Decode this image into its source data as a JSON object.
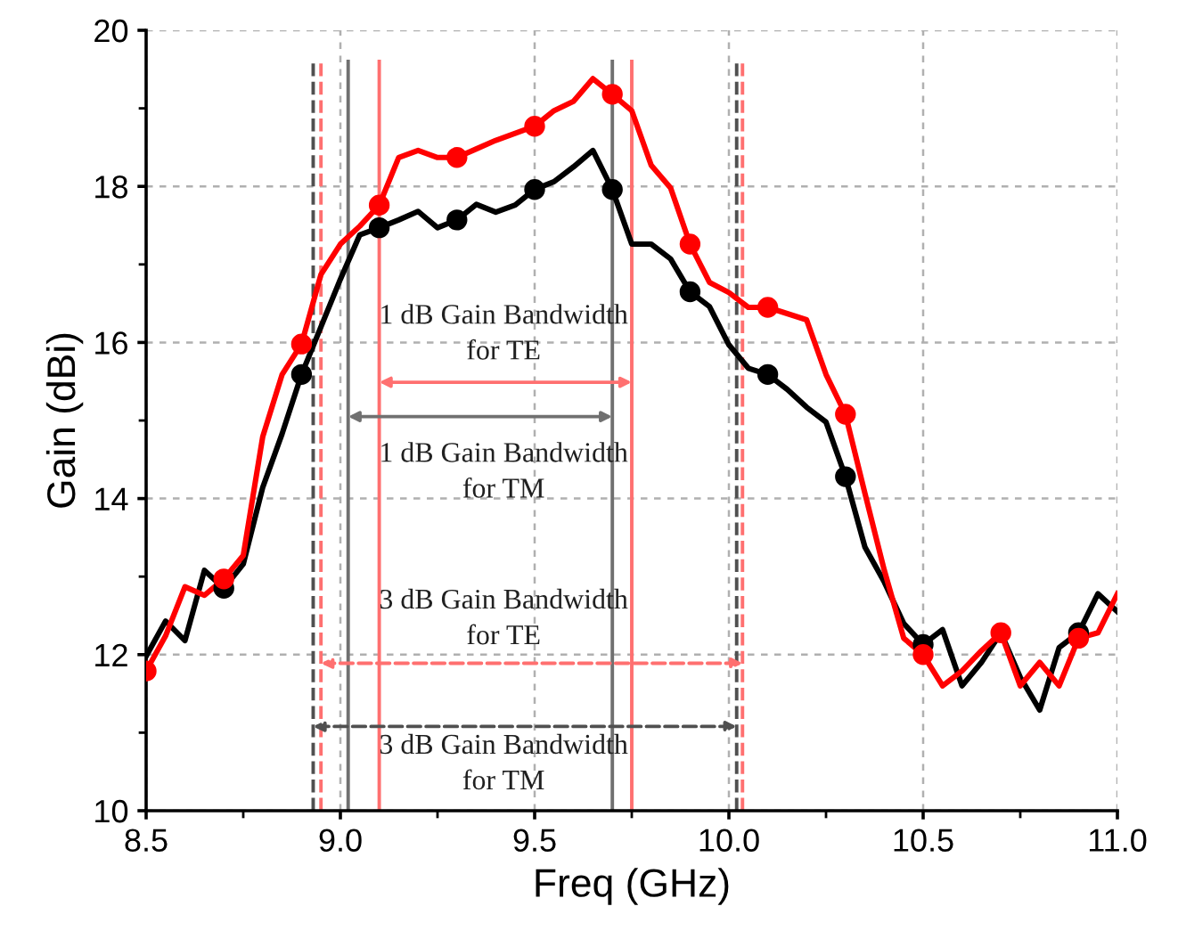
{
  "chart_data": {
    "type": "line",
    "xlabel": "Freq (GHz)",
    "ylabel": "Gain (dBi)",
    "xlim": [
      8.5,
      11.0
    ],
    "ylim": [
      10,
      20
    ],
    "xticks": [
      8.5,
      {
        "value": 9.0,
        "label": "9.0"
      },
      9.5,
      {
        "value": 10.0,
        "label": "10.0"
      },
      10.5,
      {
        "value": 11.0,
        "label": "11.0"
      }
    ],
    "yticks": [
      10,
      12,
      14,
      16,
      18,
      20
    ],
    "grid": true,
    "line_style": "solid",
    "x": [
      8.5,
      8.55,
      8.6,
      8.65,
      8.7,
      8.75,
      8.8,
      8.85,
      8.9,
      8.95,
      9.0,
      9.05,
      9.1,
      9.15,
      9.2,
      9.25,
      9.3,
      9.35,
      9.4,
      9.45,
      9.5,
      9.55,
      9.6,
      9.65,
      9.7,
      9.75,
      9.8,
      9.85,
      9.9,
      9.95,
      10.0,
      10.05,
      10.1,
      10.15,
      10.2,
      10.25,
      10.3,
      10.35,
      10.4,
      10.45,
      10.5,
      10.55,
      10.6,
      10.65,
      10.7,
      10.75,
      10.8,
      10.85,
      10.9,
      10.95,
      11.0
    ],
    "series": [
      {
        "color": "#000000",
        "values": [
          11.98,
          12.43,
          12.18,
          13.08,
          12.85,
          13.16,
          14.14,
          14.83,
          15.59,
          16.2,
          16.81,
          17.38,
          17.47,
          17.57,
          17.68,
          17.47,
          17.57,
          17.77,
          17.67,
          17.76,
          17.96,
          18.06,
          18.25,
          18.46,
          17.96,
          17.26,
          17.26,
          17.07,
          16.65,
          16.46,
          15.97,
          15.67,
          15.59,
          15.4,
          15.17,
          14.98,
          14.28,
          13.38,
          12.93,
          12.4,
          12.13,
          12.32,
          11.6,
          11.9,
          12.28,
          11.71,
          11.29,
          12.09,
          12.28,
          12.78,
          12.55
        ]
      },
      {
        "color": "#ff0000",
        "values": [
          11.79,
          12.24,
          12.87,
          12.76,
          12.97,
          13.27,
          14.79,
          15.59,
          15.98,
          16.87,
          17.26,
          17.49,
          17.76,
          18.37,
          18.46,
          18.37,
          18.37,
          18.48,
          18.59,
          18.68,
          18.77,
          18.97,
          19.09,
          19.38,
          19.18,
          18.97,
          18.27,
          17.98,
          17.26,
          16.77,
          16.64,
          16.45,
          16.45,
          16.37,
          16.29,
          15.59,
          15.08,
          14.07,
          13.08,
          12.21,
          12.0,
          11.6,
          11.79,
          12.05,
          12.28,
          11.6,
          11.9,
          11.6,
          12.21,
          12.28,
          12.78
        ]
      },
      {
        "type": "scatter",
        "marker": "circle",
        "color": "#000000",
        "x": [
          8.7,
          8.9,
          9.1,
          9.3,
          9.5,
          9.7,
          9.9,
          10.1,
          10.3,
          10.5,
          10.7,
          10.9
        ],
        "values": [
          12.85,
          15.59,
          17.47,
          17.57,
          17.96,
          17.96,
          16.65,
          15.59,
          14.28,
          12.13,
          null,
          12.28
        ]
      },
      {
        "type": "scatter",
        "marker": "circle",
        "color": "#ff0000",
        "x": [
          8.5,
          8.7,
          8.9,
          9.1,
          9.3,
          9.5,
          9.7,
          9.9,
          10.1,
          10.3,
          10.5,
          10.7,
          10.9
        ],
        "values": [
          11.79,
          12.97,
          15.98,
          17.76,
          18.37,
          18.77,
          19.18,
          17.26,
          16.45,
          15.08,
          12.0,
          12.28,
          12.21
        ]
      }
    ],
    "ref_lines": [
      {
        "axis": "x",
        "value": 9.1,
        "color": "#ff7070",
        "line_style": "solid"
      },
      {
        "axis": "x",
        "value": 9.75,
        "color": "#ff7070",
        "line_style": "solid"
      },
      {
        "axis": "x",
        "value": 9.02,
        "color": "#707070",
        "line_style": "solid"
      },
      {
        "axis": "x",
        "value": 9.7,
        "color": "#707070",
        "line_style": "solid"
      },
      {
        "axis": "x",
        "value": 8.95,
        "color": "#ff7070",
        "line_style": "dashed"
      },
      {
        "axis": "x",
        "value": 10.035,
        "color": "#ff7070",
        "line_style": "dashed"
      },
      {
        "axis": "x",
        "value": 8.93,
        "color": "#505050",
        "line_style": "dashed"
      },
      {
        "axis": "x",
        "value": 10.02,
        "color": "#505050",
        "line_style": "dashed"
      }
    ],
    "annotations": [
      "1 dB Gain Bandwidth\nfor TE",
      "1 dB Gain Bandwidth\nfor TM",
      "3 dB Gain Bandwidth\nfor TE",
      "3 dB Gain Bandwidth\nfor TM"
    ]
  }
}
